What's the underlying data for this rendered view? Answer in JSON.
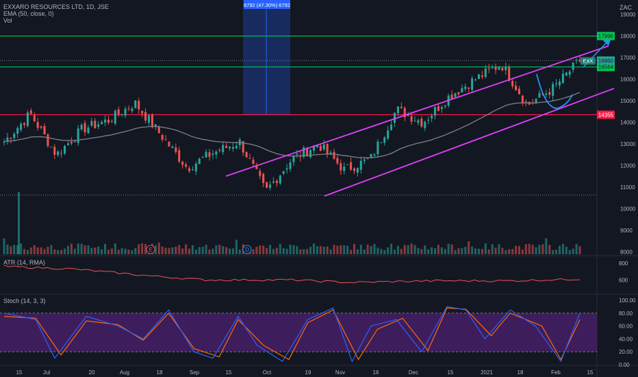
{
  "header": {
    "symbol_line": "EXXARO RESOURCES LTD, 1D, JSE",
    "ema_label": "EMA (50, close, 0)",
    "vol_label": "Vol",
    "currency": "ZAC"
  },
  "indicators": {
    "atr_label": "ATR (14, RMA)",
    "stoch_label": "Stoch (14, 3, 3)"
  },
  "colors": {
    "background": "#131722",
    "up": "#26a69a",
    "down": "#ef5350",
    "channel": "#e040fb",
    "support_green": "#00c853",
    "resistance_red": "#ff1744",
    "arrow": "#2196f3",
    "ema": "#787b86",
    "stoch_k": "#2962ff",
    "stoch_d": "#ff6d00",
    "stoch_band": "#4a1f6b"
  },
  "chart_data": [
    {
      "type": "candlestick",
      "ylim": [
        7800,
        19600
      ],
      "y_ticks": [
        8000,
        9000,
        10000,
        11000,
        12000,
        13000,
        14000,
        15000,
        16000,
        17000,
        18000,
        19000
      ],
      "x_ticks": [
        "15",
        "Jul",
        "20",
        "Aug",
        "18",
        "Sep",
        "15",
        "Oct",
        "19",
        "Nov",
        "16",
        "Dec",
        "15",
        "2021",
        "18",
        "Feb",
        "15"
      ],
      "ohlc_keypoints": [
        [
          "start",
          13100
        ],
        [
          "peak-jun",
          14400
        ],
        [
          "low-jun",
          12500
        ],
        [
          "jul",
          13700
        ],
        [
          "aug",
          14100
        ],
        [
          "aug-high",
          14900
        ],
        [
          "sep",
          13400
        ],
        [
          "late-sep",
          11900
        ],
        [
          "oct",
          12600
        ],
        [
          "mid-oct",
          13100
        ],
        [
          "nov-low",
          10800
        ],
        [
          "nov",
          12300
        ],
        [
          "mid-nov",
          13000
        ],
        [
          "late-nov",
          11800
        ],
        [
          "dec",
          12300
        ],
        [
          "mid-dec",
          14600
        ],
        [
          "late-dec",
          14000
        ],
        [
          "jan",
          15200
        ],
        [
          "mid-jan",
          16000
        ],
        [
          "jan-high",
          16700
        ],
        [
          "feb-low",
          14800
        ],
        [
          "feb",
          15600
        ],
        [
          "last",
          16860
        ]
      ],
      "price_labels": [
        {
          "name": "target",
          "value": 17996,
          "label": "17996",
          "color": "#00c853"
        },
        {
          "name": "support-green",
          "value": 16564,
          "label": "16564",
          "color": "#00c853"
        },
        {
          "name": "red-level",
          "value": 14355,
          "label": "14355",
          "color": "#ff1744"
        },
        {
          "name": "last",
          "value": 16860,
          "label": "16860",
          "color": "#26a69a"
        }
      ],
      "symbol_tag": "EXX",
      "measure_label": "6792 (47.30%) 6792",
      "event_markers": [
        "E",
        "D"
      ]
    },
    {
      "type": "line",
      "title": "ATR (14, RMA)",
      "y_ticks": [
        600,
        800
      ],
      "ylim": [
        440,
        880
      ],
      "keypoints": [
        [
          0,
          760
        ],
        [
          0.12,
          730
        ],
        [
          0.25,
          650
        ],
        [
          0.35,
          600
        ],
        [
          0.5,
          600
        ],
        [
          0.6,
          570
        ],
        [
          0.75,
          590
        ],
        [
          0.88,
          590
        ],
        [
          1.0,
          610
        ]
      ]
    },
    {
      "type": "line",
      "title": "Stoch (14, 3, 3)",
      "ylim": [
        0,
        100
      ],
      "y_ticks": [
        "100.00",
        "80.00",
        "60.00",
        "40.00",
        "20.00",
        "0.00"
      ],
      "band": [
        20,
        80
      ],
      "k_keypoints": [
        [
          0,
          80
        ],
        [
          0.05,
          70
        ],
        [
          0.08,
          10
        ],
        [
          0.13,
          75
        ],
        [
          0.18,
          60
        ],
        [
          0.22,
          40
        ],
        [
          0.26,
          85
        ],
        [
          0.3,
          20
        ],
        [
          0.33,
          10
        ],
        [
          0.37,
          75
        ],
        [
          0.4,
          30
        ],
        [
          0.44,
          5
        ],
        [
          0.48,
          70
        ],
        [
          0.52,
          88
        ],
        [
          0.55,
          5
        ],
        [
          0.58,
          60
        ],
        [
          0.62,
          70
        ],
        [
          0.66,
          20
        ],
        [
          0.7,
          90
        ],
        [
          0.73,
          85
        ],
        [
          0.76,
          40
        ],
        [
          0.8,
          85
        ],
        [
          0.84,
          60
        ],
        [
          0.88,
          5
        ],
        [
          0.91,
          80
        ]
      ],
      "d_keypoints": [
        [
          0,
          75
        ],
        [
          0.05,
          72
        ],
        [
          0.09,
          15
        ],
        [
          0.13,
          68
        ],
        [
          0.18,
          62
        ],
        [
          0.22,
          38
        ],
        [
          0.26,
          80
        ],
        [
          0.3,
          25
        ],
        [
          0.34,
          12
        ],
        [
          0.37,
          70
        ],
        [
          0.41,
          30
        ],
        [
          0.45,
          8
        ],
        [
          0.48,
          65
        ],
        [
          0.52,
          85
        ],
        [
          0.56,
          8
        ],
        [
          0.59,
          55
        ],
        [
          0.63,
          72
        ],
        [
          0.67,
          22
        ],
        [
          0.7,
          88
        ],
        [
          0.73,
          86
        ],
        [
          0.77,
          45
        ],
        [
          0.8,
          80
        ],
        [
          0.85,
          60
        ],
        [
          0.88,
          8
        ],
        [
          0.91,
          70
        ]
      ]
    }
  ]
}
